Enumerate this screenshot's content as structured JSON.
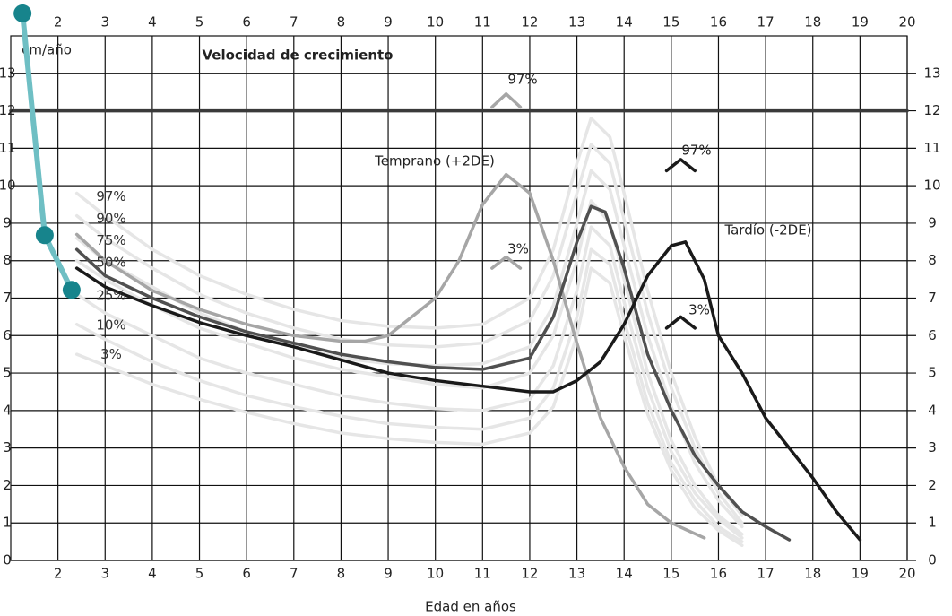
{
  "chart_data": {
    "type": "line",
    "title": "Velocidad de crecimiento",
    "x_label": "Edad en años",
    "y_label": "cm/año",
    "xlim": [
      1,
      20
    ],
    "ylim": [
      0,
      14
    ],
    "xticks": [
      2,
      3,
      4,
      5,
      6,
      7,
      8,
      9,
      10,
      11,
      12,
      13,
      14,
      15,
      16,
      17,
      18,
      19,
      20
    ],
    "yticks": [
      0,
      1,
      2,
      3,
      4,
      5,
      6,
      7,
      8,
      9,
      10,
      11,
      12,
      13
    ],
    "grid": true,
    "annotations": [
      "Temprano (+2DE)",
      "Tardío (-2DE)",
      "97%",
      "3%",
      "97%",
      "3%"
    ],
    "series": [
      {
        "name": "97%",
        "color": "#e6e6e6",
        "x": [
          2.4,
          3,
          4,
          5,
          6,
          7,
          8,
          9,
          10,
          11,
          12,
          12.5,
          13,
          13.3,
          13.7,
          14,
          14.5,
          15,
          15.5,
          16,
          16.5
        ],
        "values": [
          9.8,
          9.2,
          8.3,
          7.6,
          7.1,
          6.7,
          6.4,
          6.25,
          6.2,
          6.3,
          7.0,
          8.3,
          10.6,
          11.8,
          11.3,
          9.8,
          7.2,
          5.0,
          3.3,
          2.0,
          1.2
        ]
      },
      {
        "name": "90%",
        "color": "#e6e6e6",
        "x": [
          2.4,
          3,
          4,
          5,
          6,
          7,
          8,
          9,
          10,
          11,
          12,
          12.5,
          13,
          13.3,
          13.7,
          14,
          14.5,
          15,
          15.5,
          16,
          16.5
        ],
        "values": [
          9.2,
          8.6,
          7.8,
          7.1,
          6.6,
          6.2,
          5.9,
          5.75,
          5.7,
          5.8,
          6.4,
          7.6,
          9.8,
          11.1,
          10.6,
          9.1,
          6.6,
          4.6,
          3.0,
          1.8,
          1.0
        ]
      },
      {
        "name": "75%",
        "color": "#e6e6e6",
        "x": [
          2.4,
          3,
          4,
          5,
          6,
          7,
          8,
          9,
          10,
          11,
          12,
          12.5,
          13,
          13.3,
          13.7,
          14,
          14.5,
          15,
          15.5,
          16,
          16.5
        ],
        "values": [
          8.6,
          8.0,
          7.3,
          6.6,
          6.1,
          5.7,
          5.4,
          5.25,
          5.2,
          5.25,
          5.7,
          6.8,
          9.0,
          10.4,
          9.9,
          8.4,
          6.0,
          4.1,
          2.6,
          1.6,
          0.9
        ]
      },
      {
        "name": "50%",
        "color": "#e6e6e6",
        "x": [
          2.4,
          3,
          4,
          5,
          6,
          7,
          8,
          9,
          10,
          11,
          12,
          12.5,
          13,
          13.3,
          13.7,
          14,
          14.5,
          15,
          15.5,
          16,
          16.5
        ],
        "values": [
          8.0,
          7.5,
          6.8,
          6.2,
          5.8,
          5.4,
          5.1,
          4.9,
          4.7,
          4.6,
          5.0,
          6.0,
          8.0,
          9.6,
          9.0,
          7.5,
          5.0,
          3.2,
          2.0,
          1.2,
          0.7
        ]
      },
      {
        "name": "25%",
        "color": "#e6e6e6",
        "x": [
          2.4,
          3,
          4,
          5,
          6,
          7,
          8,
          9,
          10,
          11,
          12,
          12.5,
          13,
          13.3,
          13.7,
          14,
          14.5,
          15,
          15.5,
          16,
          16.5
        ],
        "values": [
          7.1,
          6.6,
          6.0,
          5.4,
          5.0,
          4.7,
          4.4,
          4.2,
          4.05,
          4.0,
          4.3,
          5.2,
          7.2,
          8.9,
          8.4,
          6.9,
          4.6,
          2.9,
          1.8,
          1.1,
          0.6
        ]
      },
      {
        "name": "10%",
        "color": "#e6e6e6",
        "x": [
          2.4,
          3,
          4,
          5,
          6,
          7,
          8,
          9,
          10,
          11,
          12,
          12.5,
          13,
          13.3,
          13.7,
          14,
          14.5,
          15,
          15.5,
          16,
          16.5
        ],
        "values": [
          6.3,
          5.9,
          5.3,
          4.8,
          4.4,
          4.1,
          3.85,
          3.65,
          3.55,
          3.5,
          3.8,
          4.6,
          6.5,
          8.3,
          7.9,
          6.4,
          4.2,
          2.6,
          1.6,
          0.9,
          0.5
        ]
      },
      {
        "name": "3%",
        "color": "#e6e6e6",
        "x": [
          2.4,
          3,
          4,
          5,
          6,
          7,
          8,
          9,
          10,
          11,
          12,
          12.5,
          13,
          13.3,
          13.7,
          14,
          14.5,
          15,
          15.5,
          16,
          16.5
        ],
        "values": [
          5.5,
          5.2,
          4.7,
          4.3,
          3.95,
          3.65,
          3.4,
          3.25,
          3.15,
          3.1,
          3.4,
          4.1,
          6.0,
          7.8,
          7.4,
          6.0,
          3.9,
          2.4,
          1.4,
          0.8,
          0.4
        ]
      },
      {
        "color": "#3a3a3a",
        "x": [
          1,
          20
        ],
        "values": [
          12,
          12
        ]
      },
      {
        "color": "#a6a6a6",
        "x": [
          2.4,
          3,
          4,
          5,
          6,
          7,
          8,
          8.5,
          9,
          10,
          10.5,
          11,
          11.5,
          12,
          12.5,
          13,
          13.5,
          14,
          14.5,
          15,
          15.7
        ],
        "values": [
          8.7,
          8.0,
          7.2,
          6.7,
          6.3,
          6.0,
          5.85,
          5.85,
          6.0,
          7.0,
          8.0,
          9.5,
          10.3,
          9.8,
          8.0,
          5.8,
          3.8,
          2.5,
          1.5,
          1.0,
          0.6
        ]
      },
      {
        "color": "#505050",
        "x": [
          2.4,
          3,
          4,
          5,
          6,
          7,
          8,
          9,
          10,
          11,
          12,
          12.5,
          13,
          13.3,
          13.6,
          14,
          14.5,
          15,
          15.5,
          16,
          16.5,
          17,
          17.5
        ],
        "values": [
          8.3,
          7.6,
          7.0,
          6.5,
          6.1,
          5.8,
          5.5,
          5.3,
          5.15,
          5.1,
          5.4,
          6.5,
          8.5,
          9.45,
          9.3,
          7.8,
          5.5,
          4.0,
          2.8,
          2.0,
          1.3,
          0.9,
          0.55
        ]
      },
      {
        "color": "#1a1a1a",
        "x": [
          2.4,
          3,
          4,
          5,
          6,
          7,
          8,
          9,
          10,
          11,
          12,
          12.5,
          13,
          13.5,
          14,
          14.5,
          15,
          15.3,
          15.7,
          16,
          16.5,
          17,
          17.5,
          18,
          18.5,
          19
        ],
        "values": [
          7.8,
          7.3,
          6.8,
          6.35,
          6.0,
          5.7,
          5.35,
          5.0,
          4.8,
          4.65,
          4.5,
          4.5,
          4.8,
          5.3,
          6.3,
          7.6,
          8.4,
          8.5,
          7.5,
          6.0,
          5.0,
          3.8,
          3.0,
          2.2,
          1.3,
          0.55
        ]
      },
      {
        "color": "#a6a6a6",
        "x": [
          11.2,
          11.5,
          11.8
        ],
        "values": [
          12.1,
          12.45,
          12.1
        ]
      },
      {
        "color": "#a6a6a6",
        "x": [
          11.2,
          11.5,
          11.8
        ],
        "values": [
          7.8,
          8.1,
          7.8
        ]
      },
      {
        "color": "#1a1a1a",
        "x": [
          14.9,
          15.2,
          15.5
        ],
        "values": [
          10.4,
          10.7,
          10.4
        ]
      },
      {
        "color": "#1a1a1a",
        "x": [
          14.9,
          15.2,
          15.5
        ],
        "values": [
          6.2,
          6.5,
          6.2
        ]
      },
      {
        "color": "#6fbfc4",
        "markers": true,
        "marker_color": "#17848c",
        "x": [
          1.25,
          1.72,
          2.29
        ],
        "values": [
          14.6,
          8.68,
          7.22
        ]
      }
    ]
  }
}
